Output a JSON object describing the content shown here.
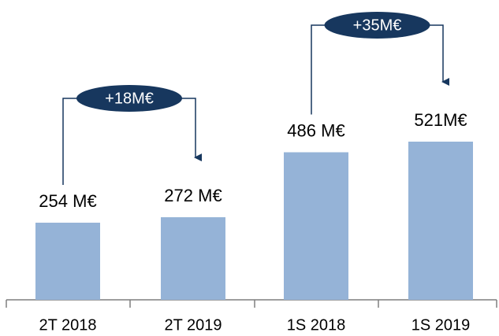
{
  "chart_data": {
    "type": "bar",
    "categories": [
      "2T 2018",
      "2T 2019",
      "1S 2018",
      "1S 2019"
    ],
    "values": [
      254,
      272,
      486,
      521
    ],
    "value_labels": [
      "254 M€",
      "272 M€",
      "486 M€",
      "521M€"
    ],
    "color": "#95b3d7",
    "annotations": [
      "+18M€",
      "+35M€"
    ]
  }
}
